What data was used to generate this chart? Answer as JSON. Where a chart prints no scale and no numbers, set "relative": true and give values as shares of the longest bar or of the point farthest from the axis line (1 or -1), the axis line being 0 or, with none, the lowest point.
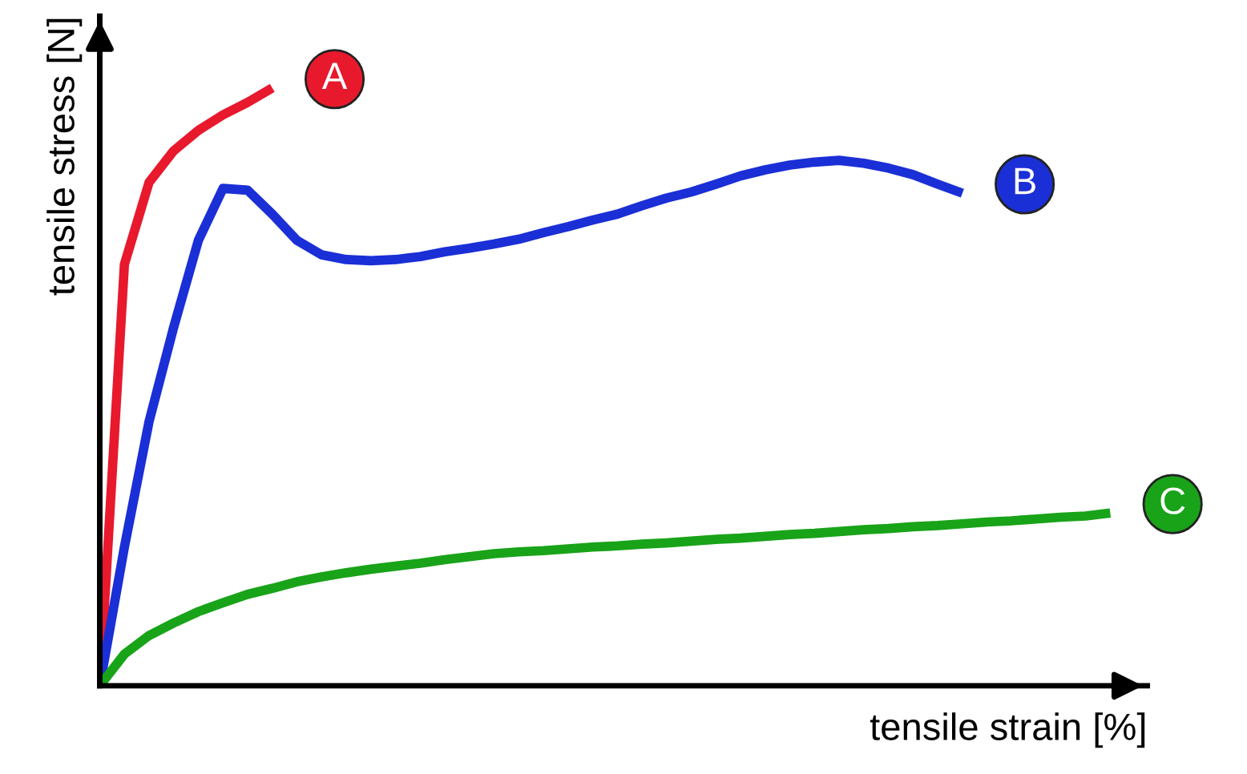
{
  "chart_data": {
    "type": "line",
    "relative": true,
    "xlabel": "tensile strain [%]",
    "ylabel": "tensile stress [N]",
    "tick_labels": false,
    "grid": false,
    "legend": false,
    "marker": "none",
    "line_style": "solid",
    "categories": [
      null,
      null,
      null,
      null,
      null,
      null,
      null,
      null,
      null,
      null,
      null,
      null,
      null,
      null,
      null,
      null,
      null,
      null,
      null,
      null,
      null,
      null,
      null,
      null,
      null,
      null,
      null,
      null,
      null,
      null,
      null,
      null,
      null,
      null,
      null,
      null,
      null,
      null,
      null,
      null,
      null,
      null
    ],
    "series": [
      {
        "name": "A",
        "color": "#e8192c",
        "values": [
          0,
          0.705,
          0.842,
          0.895,
          0.929,
          0.955,
          0.976,
          1,
          null,
          null,
          null,
          null,
          null,
          null,
          null,
          null,
          null,
          null,
          null,
          null,
          null,
          null,
          null,
          null,
          null,
          null,
          null,
          null,
          null,
          null,
          null,
          null,
          null,
          null,
          null,
          null,
          null,
          null,
          null,
          null,
          null,
          null
        ]
      },
      {
        "name": "B",
        "color": "#1a2fd6",
        "values": [
          0,
          0.232,
          0.442,
          0.6,
          0.745,
          0.832,
          0.829,
          0.789,
          0.745,
          0.721,
          0.713,
          0.711,
          0.713,
          0.718,
          0.726,
          0.732,
          0.739,
          0.747,
          0.758,
          0.768,
          0.779,
          0.789,
          0.803,
          0.816,
          0.826,
          0.839,
          0.853,
          0.863,
          0.871,
          0.876,
          0.879,
          0.874,
          0.866,
          0.855,
          0.839,
          0.824,
          null,
          null,
          null,
          null,
          null,
          null
        ]
      },
      {
        "name": "C",
        "color": "#19a319",
        "values": [
          0,
          0.053,
          0.084,
          0.105,
          0.124,
          0.139,
          0.153,
          0.163,
          0.174,
          0.182,
          0.189,
          0.195,
          0.2,
          0.205,
          0.211,
          0.216,
          0.221,
          0.224,
          0.226,
          0.229,
          0.232,
          0.234,
          0.237,
          0.239,
          0.242,
          0.245,
          0.247,
          0.25,
          0.253,
          0.255,
          0.258,
          0.261,
          0.263,
          0.266,
          0.268,
          0.271,
          0.274,
          0.276,
          0.279,
          0.282,
          0.284,
          0.289
        ]
      }
    ]
  }
}
